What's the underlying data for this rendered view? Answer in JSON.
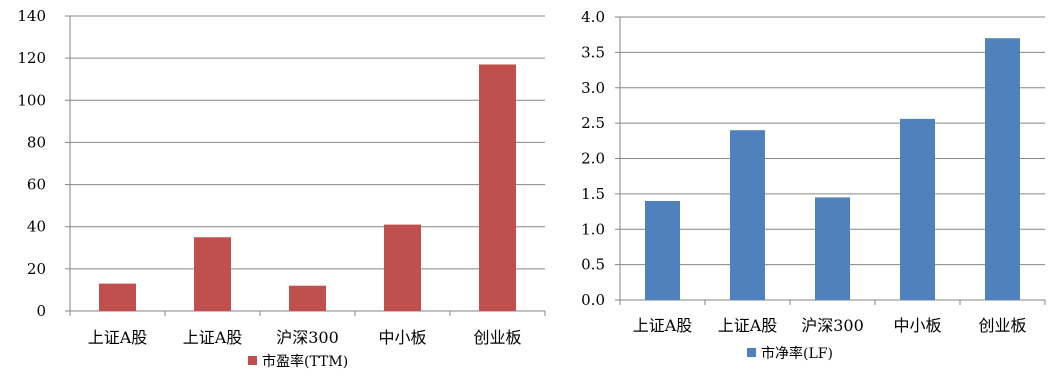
{
  "chart_data": [
    {
      "type": "bar",
      "title": "",
      "xlabel": "",
      "ylabel": "",
      "categories": [
        "上证A股",
        "上证A股",
        "沪深300",
        "中小板",
        "创业板"
      ],
      "series": [
        {
          "name": "市盈率(TTM)",
          "values": [
            13,
            35,
            12,
            41,
            117
          ],
          "color": "#C0504D"
        }
      ],
      "ylim": [
        0,
        140
      ],
      "yticks": [
        0,
        20,
        40,
        60,
        80,
        100,
        120,
        140
      ],
      "ytick_labels": [
        "0",
        "20",
        "40",
        "60",
        "80",
        "100",
        "120",
        "140"
      ],
      "grid": true,
      "legend": "bottom"
    },
    {
      "type": "bar",
      "title": "",
      "xlabel": "",
      "ylabel": "",
      "categories": [
        "上证A股",
        "上证A股",
        "沪深300",
        "中小板",
        "创业板"
      ],
      "series": [
        {
          "name": "市净率(LF)",
          "values": [
            1.4,
            2.4,
            1.45,
            2.56,
            3.7
          ],
          "color": "#4F81BD"
        }
      ],
      "ylim": [
        0,
        4
      ],
      "yticks": [
        0,
        0.5,
        1,
        1.5,
        2,
        2.5,
        3,
        3.5,
        4
      ],
      "ytick_labels": [
        "0.0",
        "0.5",
        "1.0",
        "1.5",
        "2.0",
        "2.5",
        "3.0",
        "3.5",
        "4.0"
      ],
      "grid": true,
      "legend": "bottom"
    }
  ]
}
